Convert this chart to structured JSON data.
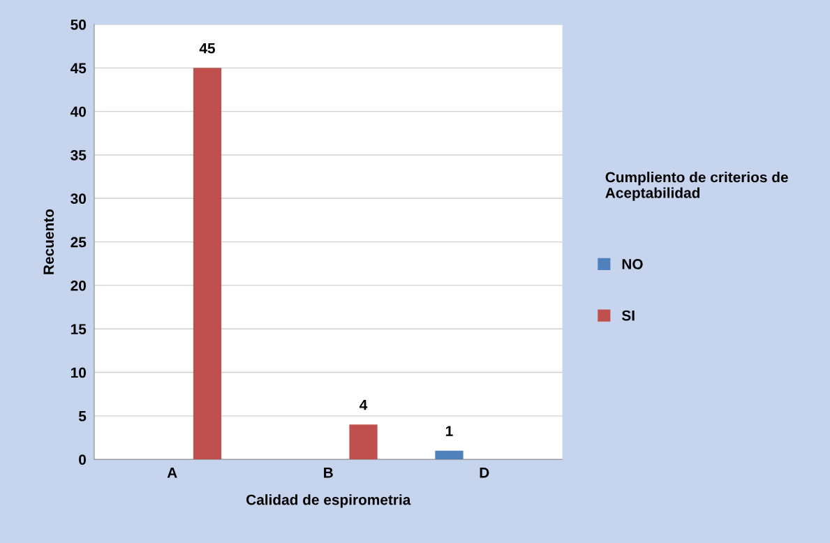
{
  "chart_data": {
    "type": "bar",
    "xlabel": "Calidad de espirometria",
    "ylabel": "Recuento",
    "legend_title": "Cumpliento de criterios de Aceptabilidad",
    "categories": [
      "A",
      "B",
      "D"
    ],
    "series": [
      {
        "name": "NO",
        "color": "#4f81bd",
        "values": [
          null,
          null,
          1
        ],
        "value_labels": [
          null,
          null,
          "1"
        ]
      },
      {
        "name": "SI",
        "color": "#c0504d",
        "values": [
          45,
          4,
          null
        ],
        "value_labels": [
          "45",
          "4",
          null
        ]
      }
    ],
    "ylim": [
      0,
      50
    ],
    "yticks": [
      0,
      5,
      10,
      15,
      20,
      25,
      30,
      35,
      40,
      45,
      50
    ],
    "grid": "y",
    "legend": "right"
  }
}
